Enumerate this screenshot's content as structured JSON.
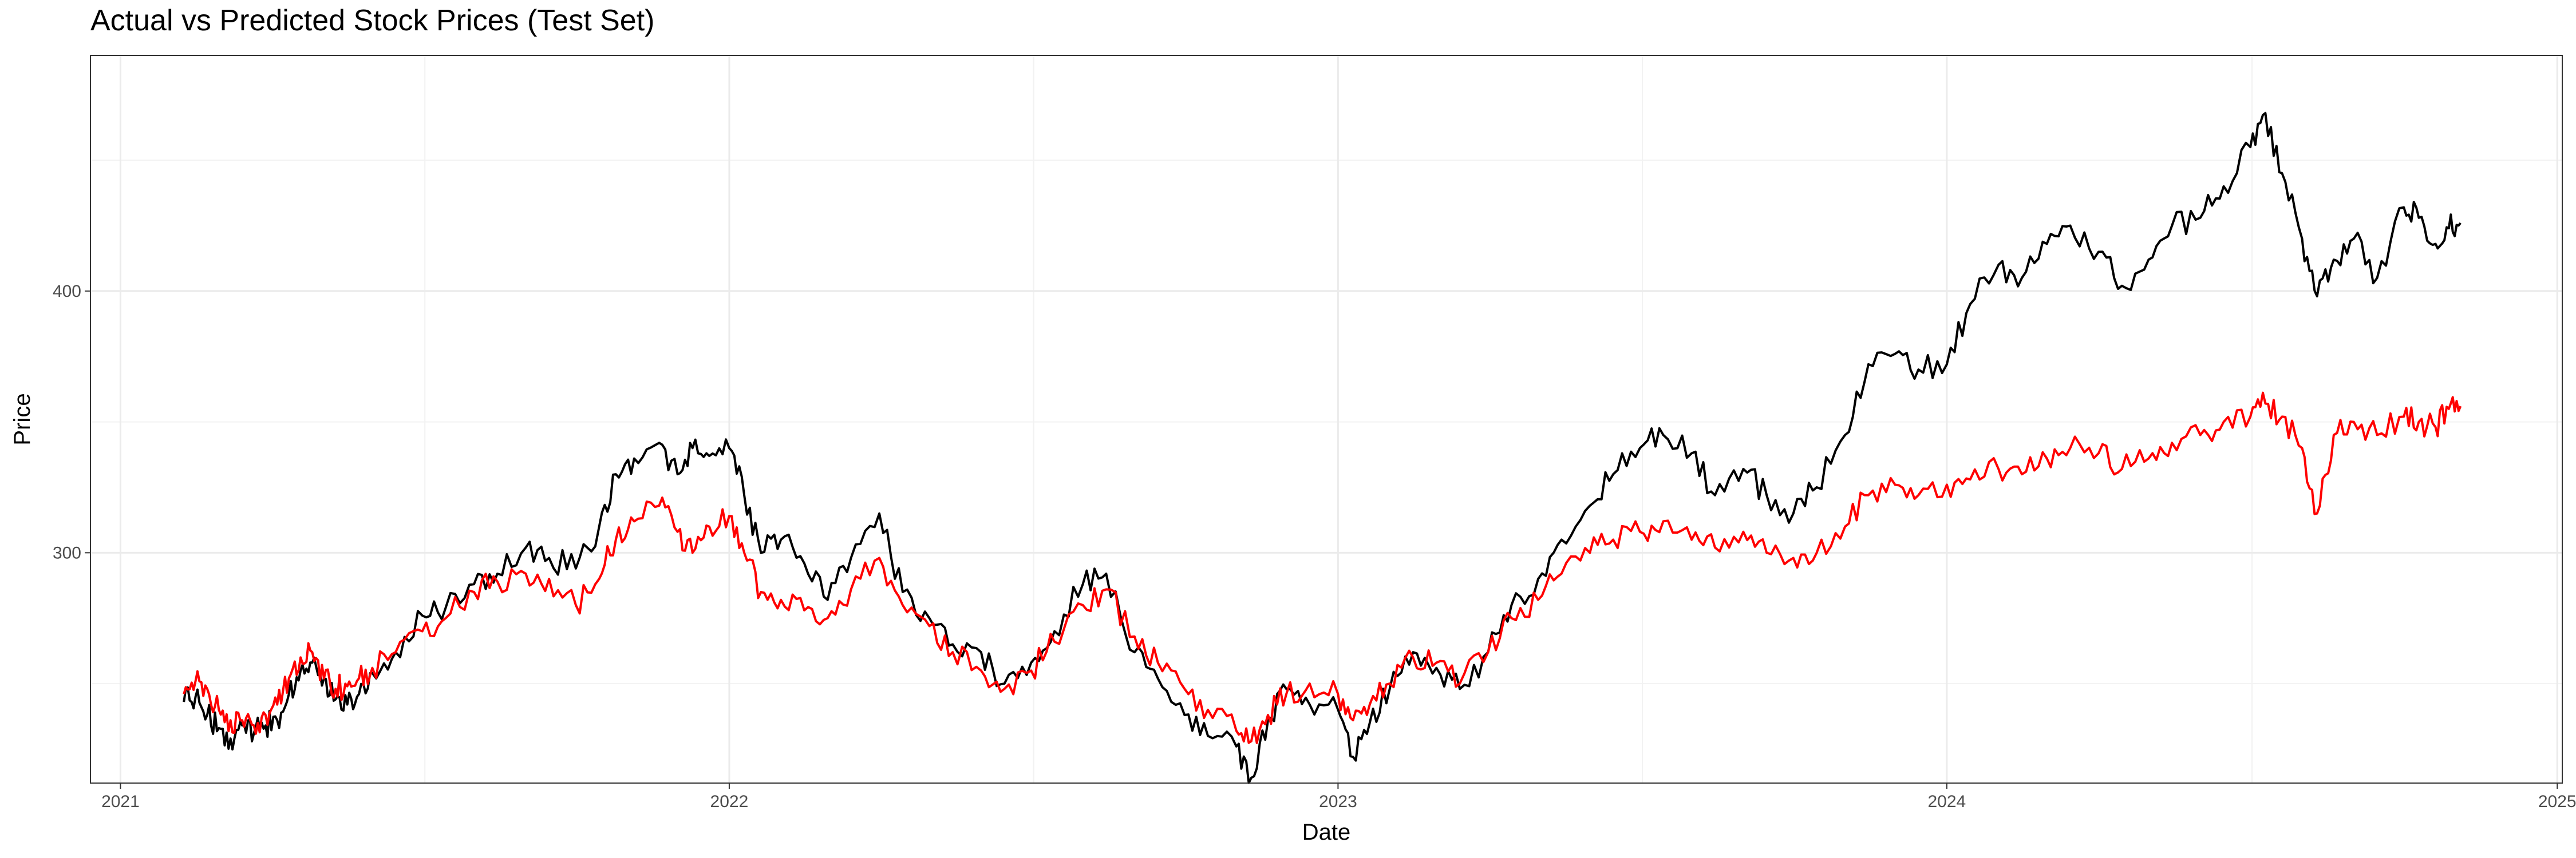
{
  "chart_data": {
    "type": "line",
    "title": "Actual vs Predicted Stock Prices (Test Set)",
    "xlabel": "Date",
    "ylabel": "Price",
    "x_axis_type": "date",
    "xlim": [
      "2020-12-14",
      "2025-01-04"
    ],
    "ylim": [
      212,
      490
    ],
    "x_ticks": [
      {
        "value": "2021-01-01",
        "label": "2021"
      },
      {
        "value": "2022-01-01",
        "label": "2022"
      },
      {
        "value": "2023-01-01",
        "label": "2023"
      },
      {
        "value": "2024-01-01",
        "label": "2024"
      },
      {
        "value": "2025-01-01",
        "label": "2025"
      }
    ],
    "y_ticks": [
      {
        "value": 300,
        "label": "300"
      },
      {
        "value": 400,
        "label": "400"
      }
    ],
    "grid": true,
    "legend": "none",
    "series": [
      {
        "color": "#000000",
        "points": [
          [
            "2021-02-08",
            243
          ],
          [
            "2021-02-15",
            245
          ],
          [
            "2021-02-22",
            238
          ],
          [
            "2021-03-01",
            233
          ],
          [
            "2021-03-08",
            229
          ],
          [
            "2021-03-15",
            234
          ],
          [
            "2021-03-22",
            231
          ],
          [
            "2021-03-29",
            234
          ],
          [
            "2021-04-05",
            236
          ],
          [
            "2021-04-12",
            246
          ],
          [
            "2021-04-19",
            255
          ],
          [
            "2021-04-26",
            258
          ],
          [
            "2021-05-03",
            252
          ],
          [
            "2021-05-10",
            244
          ],
          [
            "2021-05-17",
            242
          ],
          [
            "2021-05-24",
            246
          ],
          [
            "2021-06-01",
            254
          ],
          [
            "2021-06-15",
            262
          ],
          [
            "2021-07-01",
            276
          ],
          [
            "2021-07-15",
            279
          ],
          [
            "2021-08-01",
            288
          ],
          [
            "2021-08-15",
            292
          ],
          [
            "2021-09-01",
            302
          ],
          [
            "2021-09-15",
            298
          ],
          [
            "2021-10-01",
            294
          ],
          [
            "2021-10-15",
            310
          ],
          [
            "2021-10-25",
            330
          ],
          [
            "2021-11-05",
            336
          ],
          [
            "2021-11-20",
            342
          ],
          [
            "2021-12-01",
            330
          ],
          [
            "2021-12-10",
            340
          ],
          [
            "2021-12-20",
            337
          ],
          [
            "2022-01-01",
            340
          ],
          [
            "2022-01-10",
            322
          ],
          [
            "2022-01-20",
            300
          ],
          [
            "2022-02-01",
            305
          ],
          [
            "2022-02-15",
            296
          ],
          [
            "2022-03-01",
            282
          ],
          [
            "2022-03-15",
            298
          ],
          [
            "2022-04-01",
            315
          ],
          [
            "2022-04-15",
            285
          ],
          [
            "2022-05-01",
            275
          ],
          [
            "2022-05-15",
            265
          ],
          [
            "2022-06-01",
            262
          ],
          [
            "2022-06-15",
            250
          ],
          [
            "2022-07-01",
            258
          ],
          [
            "2022-07-15",
            270
          ],
          [
            "2022-08-01",
            288
          ],
          [
            "2022-08-15",
            292
          ],
          [
            "2022-09-01",
            262
          ],
          [
            "2022-09-15",
            252
          ],
          [
            "2022-10-01",
            238
          ],
          [
            "2022-10-15",
            230
          ],
          [
            "2022-11-01",
            226
          ],
          [
            "2022-11-10",
            214
          ],
          [
            "2022-11-20",
            236
          ],
          [
            "2022-12-01",
            248
          ],
          [
            "2022-12-15",
            242
          ],
          [
            "2023-01-01",
            240
          ],
          [
            "2023-01-10",
            222
          ],
          [
            "2023-01-20",
            235
          ],
          [
            "2023-02-01",
            248
          ],
          [
            "2023-02-15",
            262
          ],
          [
            "2023-03-01",
            256
          ],
          [
            "2023-03-15",
            248
          ],
          [
            "2023-04-01",
            262
          ],
          [
            "2023-04-15",
            280
          ],
          [
            "2023-05-01",
            290
          ],
          [
            "2023-05-15",
            305
          ],
          [
            "2023-06-01",
            318
          ],
          [
            "2023-06-15",
            330
          ],
          [
            "2023-07-01",
            340
          ],
          [
            "2023-07-15",
            345
          ],
          [
            "2023-08-01",
            338
          ],
          [
            "2023-08-15",
            322
          ],
          [
            "2023-09-01",
            332
          ],
          [
            "2023-09-15",
            322
          ],
          [
            "2023-10-01",
            315
          ],
          [
            "2023-10-15",
            325
          ],
          [
            "2023-11-01",
            345
          ],
          [
            "2023-11-15",
            372
          ],
          [
            "2023-12-01",
            376
          ],
          [
            "2023-12-15",
            370
          ],
          [
            "2024-01-01",
            372
          ],
          [
            "2024-01-15",
            395
          ],
          [
            "2024-02-01",
            410
          ],
          [
            "2024-02-15",
            405
          ],
          [
            "2024-03-01",
            418
          ],
          [
            "2024-03-15",
            425
          ],
          [
            "2024-04-01",
            415
          ],
          [
            "2024-04-15",
            402
          ],
          [
            "2024-05-01",
            412
          ],
          [
            "2024-05-15",
            425
          ],
          [
            "2024-06-01",
            428
          ],
          [
            "2024-06-15",
            440
          ],
          [
            "2024-07-01",
            455
          ],
          [
            "2024-07-10",
            468
          ],
          [
            "2024-07-20",
            445
          ],
          [
            "2024-08-01",
            420
          ],
          [
            "2024-08-10",
            398
          ],
          [
            "2024-08-20",
            412
          ],
          [
            "2024-09-01",
            420
          ],
          [
            "2024-09-15",
            405
          ],
          [
            "2024-10-01",
            432
          ],
          [
            "2024-10-10",
            428
          ],
          [
            "2024-10-20",
            418
          ],
          [
            "2024-10-28",
            424
          ],
          [
            "2024-11-04",
            426
          ]
        ]
      },
      {
        "color": "#ff0000",
        "points": [
          [
            "2021-02-08",
            246
          ],
          [
            "2021-02-15",
            251
          ],
          [
            "2021-02-22",
            248
          ],
          [
            "2021-03-01",
            240
          ],
          [
            "2021-03-08",
            236
          ],
          [
            "2021-03-15",
            236
          ],
          [
            "2021-03-22",
            234
          ],
          [
            "2021-03-29",
            238
          ],
          [
            "2021-04-05",
            242
          ],
          [
            "2021-04-12",
            252
          ],
          [
            "2021-04-19",
            260
          ],
          [
            "2021-04-26",
            262
          ],
          [
            "2021-05-03",
            252
          ],
          [
            "2021-05-10",
            248
          ],
          [
            "2021-05-17",
            249
          ],
          [
            "2021-05-24",
            252
          ],
          [
            "2021-06-01",
            256
          ],
          [
            "2021-06-15",
            262
          ],
          [
            "2021-07-01",
            270
          ],
          [
            "2021-07-15",
            275
          ],
          [
            "2021-08-01",
            285
          ],
          [
            "2021-08-15",
            289
          ],
          [
            "2021-09-01",
            292
          ],
          [
            "2021-09-15",
            290
          ],
          [
            "2021-10-01",
            280
          ],
          [
            "2021-10-15",
            290
          ],
          [
            "2021-10-25",
            305
          ],
          [
            "2021-11-05",
            312
          ],
          [
            "2021-11-20",
            318
          ],
          [
            "2021-12-01",
            308
          ],
          [
            "2021-12-10",
            300
          ],
          [
            "2021-12-20",
            310
          ],
          [
            "2022-01-01",
            314
          ],
          [
            "2022-01-10",
            300
          ],
          [
            "2022-01-20",
            285
          ],
          [
            "2022-02-01",
            282
          ],
          [
            "2022-02-15",
            278
          ],
          [
            "2022-03-01",
            275
          ],
          [
            "2022-03-15",
            286
          ],
          [
            "2022-04-01",
            298
          ],
          [
            "2022-04-15",
            280
          ],
          [
            "2022-05-01",
            272
          ],
          [
            "2022-05-15",
            262
          ],
          [
            "2022-06-01",
            255
          ],
          [
            "2022-06-15",
            248
          ],
          [
            "2022-07-01",
            255
          ],
          [
            "2022-07-15",
            266
          ],
          [
            "2022-08-01",
            280
          ],
          [
            "2022-08-15",
            286
          ],
          [
            "2022-09-01",
            268
          ],
          [
            "2022-09-15",
            258
          ],
          [
            "2022-10-01",
            248
          ],
          [
            "2022-10-15",
            240
          ],
          [
            "2022-11-01",
            232
          ],
          [
            "2022-11-10",
            228
          ],
          [
            "2022-11-20",
            238
          ],
          [
            "2022-12-01",
            246
          ],
          [
            "2022-12-15",
            250
          ],
          [
            "2023-01-01",
            246
          ],
          [
            "2023-01-10",
            236
          ],
          [
            "2023-01-20",
            242
          ],
          [
            "2023-02-01",
            250
          ],
          [
            "2023-02-15",
            260
          ],
          [
            "2023-03-01",
            258
          ],
          [
            "2023-03-15",
            250
          ],
          [
            "2023-04-01",
            262
          ],
          [
            "2023-04-15",
            275
          ],
          [
            "2023-05-01",
            282
          ],
          [
            "2023-05-15",
            292
          ],
          [
            "2023-06-01",
            300
          ],
          [
            "2023-06-15",
            305
          ],
          [
            "2023-07-01",
            308
          ],
          [
            "2023-07-15",
            312
          ],
          [
            "2023-08-01",
            305
          ],
          [
            "2023-08-15",
            302
          ],
          [
            "2023-09-01",
            308
          ],
          [
            "2023-09-15",
            300
          ],
          [
            "2023-10-01",
            298
          ],
          [
            "2023-10-15",
            300
          ],
          [
            "2023-11-01",
            310
          ],
          [
            "2023-11-15",
            322
          ],
          [
            "2023-12-01",
            326
          ],
          [
            "2023-12-15",
            322
          ],
          [
            "2024-01-01",
            326
          ],
          [
            "2024-01-15",
            328
          ],
          [
            "2024-02-01",
            332
          ],
          [
            "2024-02-15",
            330
          ],
          [
            "2024-03-01",
            336
          ],
          [
            "2024-03-15",
            340
          ],
          [
            "2024-04-01",
            338
          ],
          [
            "2024-04-15",
            332
          ],
          [
            "2024-05-01",
            336
          ],
          [
            "2024-05-15",
            342
          ],
          [
            "2024-06-01",
            345
          ],
          [
            "2024-06-15",
            350
          ],
          [
            "2024-07-01",
            352
          ],
          [
            "2024-07-10",
            357
          ],
          [
            "2024-07-20",
            352
          ],
          [
            "2024-08-01",
            340
          ],
          [
            "2024-08-10",
            315
          ],
          [
            "2024-08-20",
            345
          ],
          [
            "2024-09-01",
            350
          ],
          [
            "2024-09-15",
            345
          ],
          [
            "2024-10-01",
            352
          ],
          [
            "2024-10-10",
            350
          ],
          [
            "2024-10-20",
            348
          ],
          [
            "2024-10-28",
            355
          ],
          [
            "2024-11-04",
            356
          ]
        ]
      }
    ]
  }
}
